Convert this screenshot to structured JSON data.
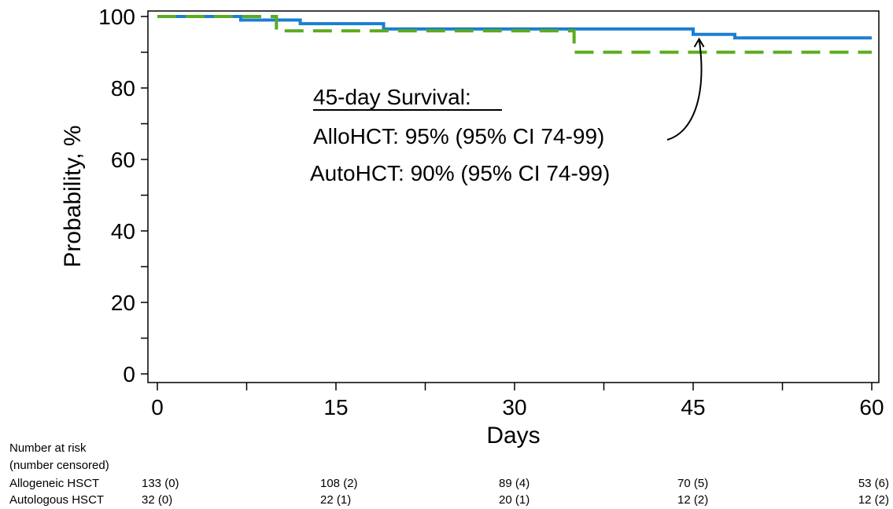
{
  "chart_data": {
    "type": "line",
    "subtype": "kaplan-meier step",
    "title": "",
    "xlabel": "Days",
    "ylabel": "Probability, %",
    "xlim": [
      0,
      60
    ],
    "ylim": [
      0,
      100
    ],
    "xticks": [
      0,
      15,
      30,
      45,
      60
    ],
    "yticks": [
      0,
      20,
      40,
      60,
      80,
      100
    ],
    "grid": false,
    "series": [
      {
        "color": "#1a7fd1",
        "style": "solid",
        "x": [
          0,
          7,
          12,
          19,
          45,
          48.5,
          60
        ],
        "y": [
          100,
          99,
          98,
          96.5,
          95,
          94,
          94
        ]
      },
      {
        "color": "#5aab1e",
        "style": "dashed",
        "x": [
          0,
          10,
          19,
          35,
          60
        ],
        "y": [
          100,
          96,
          96,
          90,
          90
        ]
      }
    ],
    "annotation": {
      "heading": "45-day Survival:",
      "lines": [
        "AlloHCT: 95% (95% CI 74-99)",
        "AutoHCT: 90% (95% CI 74-99)"
      ],
      "arrow_to": {
        "x": 45.5,
        "y": 95
      }
    }
  },
  "risk_table": {
    "title_line1": "Number at risk",
    "title_line2": "(number censored)",
    "rows": [
      {
        "label": "Allogeneic HSCT",
        "values": [
          "133 (0)",
          "108 (2)",
          "89 (4)",
          "70 (5)",
          "53 (6)"
        ]
      },
      {
        "label": "Autologous HSCT",
        "values": [
          "32 (0)",
          "22 (1)",
          "20 (1)",
          "12 (2)",
          "12 (2)"
        ]
      }
    ],
    "at_days": [
      0,
      15,
      30,
      45,
      60
    ]
  }
}
